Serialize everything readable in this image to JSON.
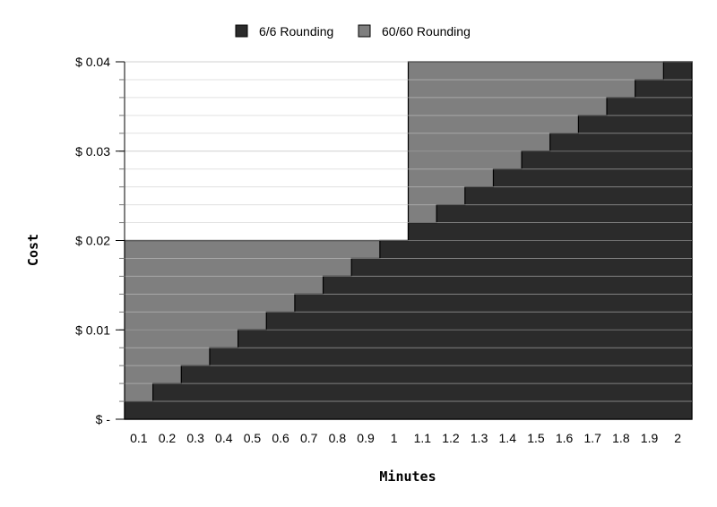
{
  "chart_data": {
    "type": "area",
    "title": "",
    "xlabel": "Minutes",
    "ylabel": "Cost",
    "x_ticks": [
      "0.1",
      "0.2",
      "0.3",
      "0.4",
      "0.5",
      "0.6",
      "0.7",
      "0.8",
      "0.9",
      "1",
      "1.1",
      "1.2",
      "1.3",
      "1.4",
      "1.5",
      "1.6",
      "1.7",
      "1.8",
      "1.9",
      "2"
    ],
    "y_ticks": [
      {
        "value": 0,
        "label": "$ -"
      },
      {
        "value": 0.01,
        "label": "$ 0.01"
      },
      {
        "value": 0.02,
        "label": "$ 0.02"
      },
      {
        "value": 0.03,
        "label": "$ 0.03"
      },
      {
        "value": 0.04,
        "label": "$ 0.04"
      }
    ],
    "ylim": [
      0,
      0.04
    ],
    "xlim": [
      0.05,
      2.05
    ],
    "grid": true,
    "legend_position": "top",
    "series": [
      {
        "name": "6/6 Rounding",
        "color": "#2b2b2b",
        "x": [
          0.1,
          0.2,
          0.3,
          0.4,
          0.5,
          0.6,
          0.7,
          0.8,
          0.9,
          1,
          1.1,
          1.2,
          1.3,
          1.4,
          1.5,
          1.6,
          1.7,
          1.8,
          1.9,
          2
        ],
        "values": [
          0.002,
          0.004,
          0.006,
          0.008,
          0.01,
          0.012,
          0.014,
          0.016,
          0.018,
          0.02,
          0.022,
          0.024,
          0.026,
          0.028,
          0.03,
          0.032,
          0.034,
          0.036,
          0.038,
          0.04
        ]
      },
      {
        "name": "60/60 Rounding",
        "color": "#7f7f7f",
        "x": [
          0.1,
          0.2,
          0.3,
          0.4,
          0.5,
          0.6,
          0.7,
          0.8,
          0.9,
          1,
          1.1,
          1.2,
          1.3,
          1.4,
          1.5,
          1.6,
          1.7,
          1.8,
          1.9,
          2
        ],
        "values": [
          0.02,
          0.02,
          0.02,
          0.02,
          0.02,
          0.02,
          0.02,
          0.02,
          0.02,
          0.02,
          0.04,
          0.04,
          0.04,
          0.04,
          0.04,
          0.04,
          0.04,
          0.04,
          0.04,
          0.04
        ]
      }
    ]
  }
}
